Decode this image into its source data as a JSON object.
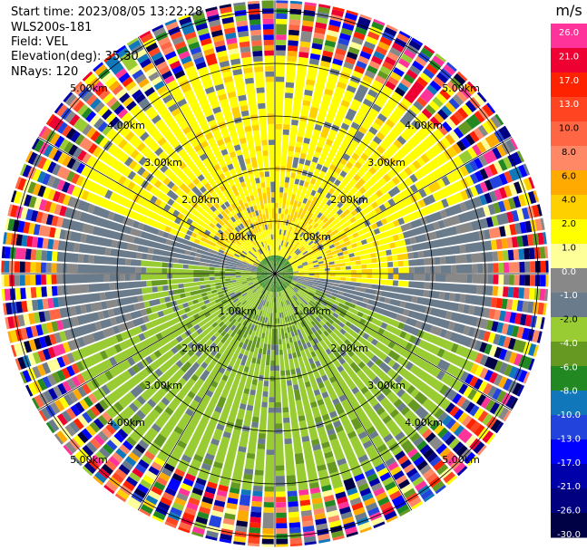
{
  "info": {
    "start_time": "Start time: 2023/08/05 13:22:28",
    "site": "WLS200s-181",
    "field": "Field: VEL",
    "elevation": "Elevation(deg): 35.30",
    "nrays": "NRays: 120"
  },
  "chart_data": {
    "type": "heatmap",
    "projection": "polar-ppi",
    "n_rays": 120,
    "range_unit": "km",
    "range_rings": [
      1,
      2,
      3,
      4,
      5
    ],
    "range_ring_labels": [
      "1.00km",
      "2.00km",
      "3.00km",
      "4.00km",
      "5.00km"
    ],
    "max_range": 5.2,
    "colorbar": {
      "unit": "m/s",
      "ticks": [
        "26.0",
        "21.0",
        "17.0",
        "13.0",
        "10.0",
        "8.0",
        "6.0",
        "4.0",
        "2.0",
        "1.0",
        "0.0",
        "-1.0",
        "-2.0",
        "-4.0",
        "-6.0",
        "-8.0",
        "-10.0",
        "-13.0",
        "-17.0",
        "-21.0",
        "-26.0",
        "-30.0"
      ],
      "colors": [
        "#ff3399",
        "#ee0033",
        "#ff2200",
        "#ff4422",
        "#ff6644",
        "#ff8866",
        "#ffaa00",
        "#ffd000",
        "#ffff00",
        "#ffff99",
        "#888888",
        "#6a7b8c",
        "#99cc33",
        "#669922",
        "#228822",
        "#1177bb",
        "#2244dd",
        "#0000ff",
        "#0000aa",
        "#000080",
        "#000044"
      ]
    },
    "pattern": {
      "towards_approx_deg": 180,
      "away_approx_deg": 0,
      "noise_beyond_km": 4.2
    }
  }
}
